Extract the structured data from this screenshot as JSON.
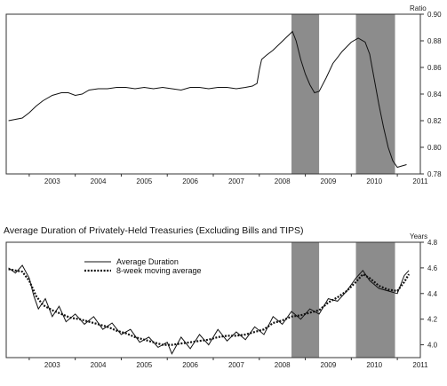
{
  "chart_data": [
    {
      "type": "line",
      "title": "",
      "unit_label": "Ratio",
      "xlabel": "",
      "ylabel": "",
      "x_ticks": [
        "2003",
        "2004",
        "2005",
        "2006",
        "2007",
        "2008",
        "2009",
        "2010",
        "2011"
      ],
      "xlim": [
        2002.5,
        2011.5
      ],
      "ylim": [
        0.78,
        0.9
      ],
      "y_ticks": [
        0.78,
        0.8,
        0.82,
        0.84,
        0.86,
        0.88,
        0.9
      ],
      "y_tick_labels": [
        "0.78",
        "0.80",
        "0.82",
        "0.84",
        "0.86",
        "0.88",
        "0.90"
      ],
      "grid": false,
      "recession_shading": [
        [
          2008.7,
          2009.3
        ],
        [
          2010.1,
          2010.95
        ]
      ],
      "series": [
        {
          "points": [
            [
              2002.55,
              0.82
            ],
            [
              2002.7,
              0.821
            ],
            [
              2002.85,
              0.822
            ],
            [
              2003.0,
              0.826
            ],
            [
              2003.15,
              0.831
            ],
            [
              2003.3,
              0.835
            ],
            [
              2003.5,
              0.839
            ],
            [
              2003.7,
              0.841
            ],
            [
              2003.85,
              0.841
            ],
            [
              2004.0,
              0.839
            ],
            [
              2004.15,
              0.84
            ],
            [
              2004.3,
              0.843
            ],
            [
              2004.5,
              0.844
            ],
            [
              2004.7,
              0.844
            ],
            [
              2004.9,
              0.845
            ],
            [
              2005.1,
              0.845
            ],
            [
              2005.3,
              0.844
            ],
            [
              2005.5,
              0.845
            ],
            [
              2005.7,
              0.844
            ],
            [
              2005.9,
              0.845
            ],
            [
              2006.1,
              0.844
            ],
            [
              2006.3,
              0.843
            ],
            [
              2006.5,
              0.845
            ],
            [
              2006.7,
              0.845
            ],
            [
              2006.9,
              0.844
            ],
            [
              2007.1,
              0.845
            ],
            [
              2007.3,
              0.845
            ],
            [
              2007.5,
              0.844
            ],
            [
              2007.7,
              0.845
            ],
            [
              2007.85,
              0.846
            ],
            [
              2007.95,
              0.848
            ],
            [
              2008.0,
              0.858
            ],
            [
              2008.05,
              0.866
            ],
            [
              2008.15,
              0.869
            ],
            [
              2008.3,
              0.873
            ],
            [
              2008.45,
              0.878
            ],
            [
              2008.6,
              0.883
            ],
            [
              2008.72,
              0.887
            ],
            [
              2008.8,
              0.88
            ],
            [
              2008.9,
              0.866
            ],
            [
              2009.0,
              0.855
            ],
            [
              2009.1,
              0.847
            ],
            [
              2009.2,
              0.841
            ],
            [
              2009.3,
              0.842
            ],
            [
              2009.45,
              0.852
            ],
            [
              2009.6,
              0.863
            ],
            [
              2009.8,
              0.872
            ],
            [
              2010.0,
              0.879
            ],
            [
              2010.15,
              0.882
            ],
            [
              2010.3,
              0.879
            ],
            [
              2010.4,
              0.87
            ],
            [
              2010.5,
              0.851
            ],
            [
              2010.6,
              0.832
            ],
            [
              2010.7,
              0.815
            ],
            [
              2010.8,
              0.8
            ],
            [
              2010.9,
              0.79
            ],
            [
              2011.0,
              0.785
            ],
            [
              2011.1,
              0.786
            ],
            [
              2011.2,
              0.787
            ]
          ]
        }
      ]
    },
    {
      "type": "line",
      "title": "Average Duration of Privately-Held Treasuries (Excluding Bills and TIPS)",
      "unit_label": "Years",
      "xlabel": "",
      "ylabel": "",
      "x_ticks": [
        "2003",
        "2004",
        "2005",
        "2006",
        "2007",
        "2008",
        "2009",
        "2010",
        "2011"
      ],
      "xlim": [
        2002.5,
        2011.5
      ],
      "ylim": [
        3.9,
        4.8
      ],
      "y_ticks": [
        4.0,
        4.2,
        4.4,
        4.6,
        4.8
      ],
      "y_tick_labels": [
        "4.0",
        "4.2",
        "4.4",
        "4.6",
        "4.8"
      ],
      "grid": false,
      "legend": "upper-left",
      "recession_shading": [
        [
          2008.7,
          2009.3
        ],
        [
          2010.1,
          2010.95
        ]
      ],
      "series": [
        {
          "name": "Average Duration",
          "style": "solid-thin",
          "points": [
            [
              2002.55,
              4.6
            ],
            [
              2002.7,
              4.56
            ],
            [
              2002.85,
              4.62
            ],
            [
              2003.0,
              4.52
            ],
            [
              2003.1,
              4.38
            ],
            [
              2003.2,
              4.28
            ],
            [
              2003.35,
              4.36
            ],
            [
              2003.5,
              4.22
            ],
            [
              2003.65,
              4.3
            ],
            [
              2003.8,
              4.18
            ],
            [
              2004.0,
              4.24
            ],
            [
              2004.2,
              4.16
            ],
            [
              2004.4,
              4.22
            ],
            [
              2004.6,
              4.12
            ],
            [
              2004.8,
              4.17
            ],
            [
              2005.0,
              4.08
            ],
            [
              2005.2,
              4.12
            ],
            [
              2005.4,
              4.02
            ],
            [
              2005.6,
              4.06
            ],
            [
              2005.8,
              3.98
            ],
            [
              2006.0,
              4.02
            ],
            [
              2006.1,
              3.93
            ],
            [
              2006.3,
              4.06
            ],
            [
              2006.5,
              3.97
            ],
            [
              2006.7,
              4.08
            ],
            [
              2006.9,
              4.0
            ],
            [
              2007.1,
              4.12
            ],
            [
              2007.3,
              4.03
            ],
            [
              2007.5,
              4.1
            ],
            [
              2007.7,
              4.04
            ],
            [
              2007.9,
              4.14
            ],
            [
              2008.1,
              4.08
            ],
            [
              2008.3,
              4.22
            ],
            [
              2008.5,
              4.16
            ],
            [
              2008.7,
              4.26
            ],
            [
              2008.9,
              4.2
            ],
            [
              2009.1,
              4.28
            ],
            [
              2009.3,
              4.24
            ],
            [
              2009.5,
              4.36
            ],
            [
              2009.7,
              4.34
            ],
            [
              2009.9,
              4.42
            ],
            [
              2010.1,
              4.52
            ],
            [
              2010.25,
              4.58
            ],
            [
              2010.4,
              4.5
            ],
            [
              2010.6,
              4.44
            ],
            [
              2010.8,
              4.42
            ],
            [
              2011.0,
              4.4
            ],
            [
              2011.15,
              4.54
            ],
            [
              2011.25,
              4.58
            ]
          ]
        },
        {
          "name": "8-week moving average",
          "style": "dotted-thick",
          "points": [
            [
              2002.55,
              4.59
            ],
            [
              2002.7,
              4.58
            ],
            [
              2002.85,
              4.57
            ],
            [
              2003.0,
              4.5
            ],
            [
              2003.15,
              4.38
            ],
            [
              2003.3,
              4.31
            ],
            [
              2003.5,
              4.27
            ],
            [
              2003.7,
              4.24
            ],
            [
              2003.9,
              4.21
            ],
            [
              2004.1,
              4.2
            ],
            [
              2004.3,
              4.18
            ],
            [
              2004.5,
              4.16
            ],
            [
              2004.7,
              4.14
            ],
            [
              2004.9,
              4.11
            ],
            [
              2005.1,
              4.09
            ],
            [
              2005.3,
              4.06
            ],
            [
              2005.5,
              4.04
            ],
            [
              2005.7,
              4.02
            ],
            [
              2005.9,
              4.0
            ],
            [
              2006.1,
              4.0
            ],
            [
              2006.3,
              4.01
            ],
            [
              2006.5,
              4.02
            ],
            [
              2006.7,
              4.03
            ],
            [
              2006.9,
              4.04
            ],
            [
              2007.1,
              4.06
            ],
            [
              2007.3,
              4.07
            ],
            [
              2007.5,
              4.07
            ],
            [
              2007.7,
              4.08
            ],
            [
              2007.9,
              4.1
            ],
            [
              2008.1,
              4.12
            ],
            [
              2008.3,
              4.17
            ],
            [
              2008.5,
              4.19
            ],
            [
              2008.7,
              4.22
            ],
            [
              2008.9,
              4.23
            ],
            [
              2009.1,
              4.25
            ],
            [
              2009.3,
              4.27
            ],
            [
              2009.5,
              4.33
            ],
            [
              2009.7,
              4.37
            ],
            [
              2009.9,
              4.42
            ],
            [
              2010.1,
              4.49
            ],
            [
              2010.25,
              4.55
            ],
            [
              2010.4,
              4.52
            ],
            [
              2010.6,
              4.46
            ],
            [
              2010.8,
              4.43
            ],
            [
              2011.0,
              4.42
            ],
            [
              2011.15,
              4.49
            ],
            [
              2011.25,
              4.55
            ]
          ]
        }
      ]
    }
  ],
  "colors": {
    "shading": "#8c8c8c",
    "line": "#111111",
    "frame": "#333333"
  }
}
